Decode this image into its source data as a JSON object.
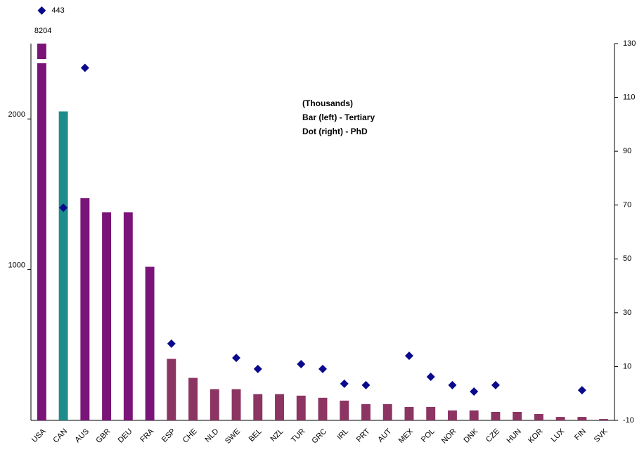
{
  "chart_data": {
    "type": "bar",
    "annotations": [
      "(Thousands)",
      "Bar (left) - Tertiary",
      "Dot (right) - PhD"
    ],
    "categories": [
      "USA",
      "CAN",
      "AUS",
      "GBR",
      "DEU",
      "FRA",
      "ESP",
      "CHE",
      "NLD",
      "SWE",
      "BEL",
      "NZL",
      "TUR",
      "GRC",
      "IRL",
      "PRT",
      "AUT",
      "MEX",
      "POL",
      "NOR",
      "DNK",
      "CZE",
      "HUN",
      "KOR",
      "LUX",
      "FIN",
      "SVK"
    ],
    "series": [
      {
        "type": "bar",
        "values": [
          8204,
          2050,
          1474,
          1380,
          1380,
          1019,
          408,
          282,
          207,
          207,
          174,
          174,
          164,
          150,
          131,
          108,
          108,
          89,
          89,
          66,
          66,
          56,
          56,
          42,
          23,
          23,
          9
        ],
        "value_labels": [
          "8204",
          null,
          null,
          null,
          null,
          null,
          null,
          null,
          null,
          null,
          null,
          null,
          null,
          null,
          null,
          null,
          null,
          null,
          null,
          null,
          null,
          null,
          null,
          null,
          null,
          null,
          null
        ],
        "colors": [
          "#7a1478",
          "#1e8c8c",
          "#7a1478",
          "#7a1478",
          "#7a1478",
          "#7a1478",
          "#8c3462",
          "#8c3462",
          "#8c3462",
          "#8c3462",
          "#8c3462",
          "#8c3462",
          "#8c3462",
          "#8c3462",
          "#8c3462",
          "#8c3462",
          "#8c3462",
          "#8c3462",
          "#8c3462",
          "#8c3462",
          "#8c3462",
          "#8c3462",
          "#8c3462",
          "#8c3462",
          "#8c3462",
          "#8c3462",
          "#8c3462"
        ]
      },
      {
        "type": "scatter",
        "axis": "y2",
        "color": "#0a0a8c",
        "values": [
          443,
          69,
          121,
          null,
          null,
          null,
          18.5,
          null,
          null,
          13.2,
          9.1,
          null,
          10.9,
          9.1,
          3.6,
          3.1,
          null,
          14,
          6.2,
          3.1,
          0.7,
          3.1,
          null,
          null,
          null,
          1.2,
          null
        ],
        "value_labels": [
          "443",
          null,
          null,
          null,
          null,
          null,
          null,
          null,
          null,
          null,
          null,
          null,
          null,
          null,
          null,
          null,
          null,
          null,
          null,
          null,
          null,
          null,
          null,
          null,
          null,
          null,
          null
        ]
      }
    ],
    "ylim": [
      0,
      2500
    ],
    "yticks": [
      1000,
      2000
    ],
    "y2lim": [
      -10,
      130
    ],
    "y2ticks": [
      -10,
      10,
      30,
      50,
      70,
      90,
      110,
      130
    ]
  }
}
